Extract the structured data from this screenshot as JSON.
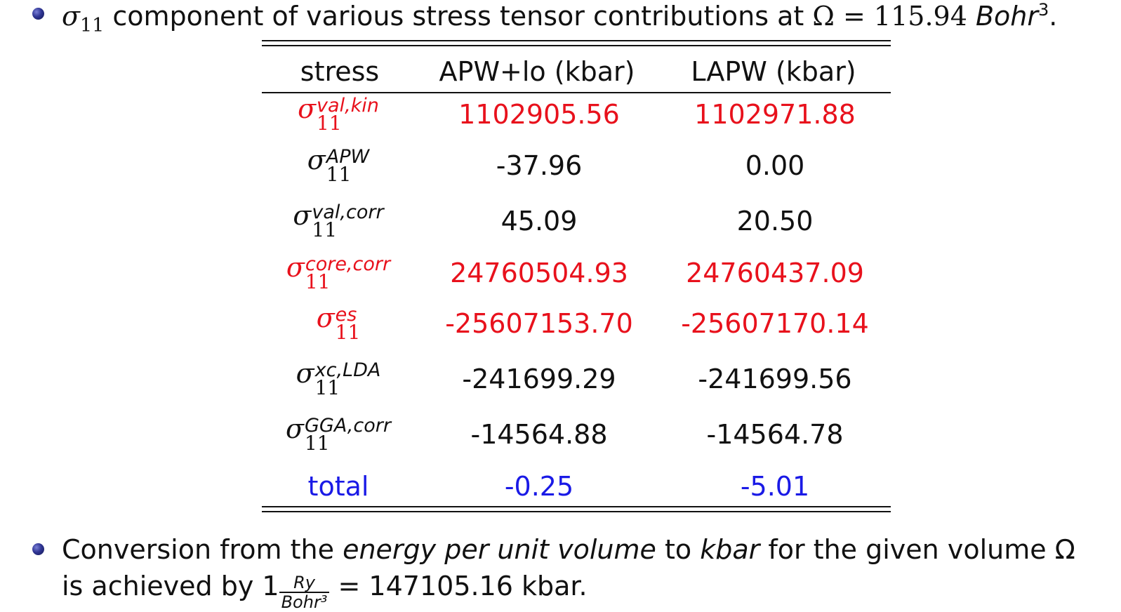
{
  "intro": {
    "sigma": "σ",
    "sigma_sub": "11",
    "text": " component of various stress tensor contributions at ",
    "omega_eq": "Ω = 115.94 ",
    "unit": "Bohr",
    "unit_exp": "3",
    "end": "."
  },
  "table": {
    "headers": [
      "stress",
      "APW+lo (kbar)",
      "LAPW (kbar)"
    ],
    "rows": [
      {
        "sup": "val,kin",
        "apw": "1102905.56",
        "lapw": "1102971.88",
        "color": "#e8111c"
      },
      {
        "sup": "APW",
        "apw": "-37.96",
        "lapw": "0.00",
        "color": "#111111"
      },
      {
        "sup": "val,corr",
        "apw": "45.09",
        "lapw": "20.50",
        "color": "#111111"
      },
      {
        "sup": "core,corr",
        "apw": "24760504.93",
        "lapw": "24760437.09",
        "color": "#e8111c"
      },
      {
        "sup": "es",
        "apw": "-25607153.70",
        "lapw": "-25607170.14",
        "color": "#e8111c"
      },
      {
        "sup": "xc,LDA",
        "apw": "-241699.29",
        "lapw": "-241699.56",
        "color": "#111111"
      },
      {
        "sup": "GGA,corr",
        "apw": "-14564.88",
        "lapw": "-14564.78",
        "color": "#111111"
      }
    ],
    "total": {
      "label": "total",
      "apw": "-0.25",
      "lapw": "-5.01",
      "color": "#1a1ae6"
    }
  },
  "conversion": {
    "t1": "Conversion from the ",
    "t2": "energy per unit volume",
    "t3": " to ",
    "t4": "kbar",
    "t5": " for the given volume Ω",
    "t6": "is achieved by 1",
    "num": "Ry",
    "den": "Bohr³",
    "t7": " = 147105.16 kbar."
  }
}
